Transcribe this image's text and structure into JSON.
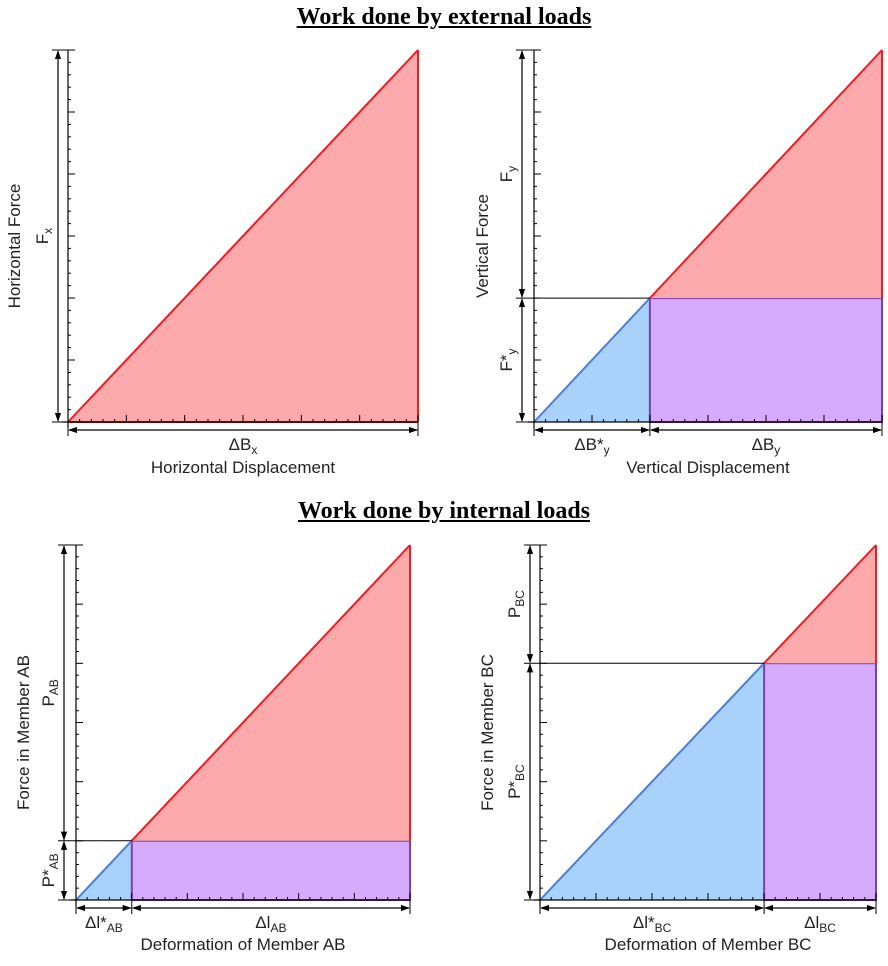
{
  "headings": {
    "external": "Work done by external loads",
    "internal": "Work done by internal loads"
  },
  "colors": {
    "red_fill": "#fba9ab",
    "red_line": "#ee1c25",
    "blue_fill": "#a8d2fb",
    "blue_line": "#4a7fd1",
    "purple_fill": "#d6aafc",
    "purple_line": "#7a3fb0",
    "axis": "#000000"
  },
  "panels": [
    {
      "id": "panel-horizontal",
      "y_axis_label": "Horizontal Force",
      "x_axis_label": "Horizontal Displacement",
      "y_dim_labels": [
        {
          "text": "F",
          "sub": "x"
        }
      ],
      "x_dim_labels": [
        {
          "text": "ΔB",
          "sub": "x"
        }
      ],
      "split_fraction": 0
    },
    {
      "id": "panel-vertical",
      "y_axis_label": "Vertical Force",
      "x_axis_label": "Vertical Displacement",
      "y_dim_labels": [
        {
          "text": "F*",
          "sub": "y"
        },
        {
          "text": "F",
          "sub": "y"
        }
      ],
      "x_dim_labels": [
        {
          "text": "ΔB*",
          "sub": "y"
        },
        {
          "text": "ΔB",
          "sub": "y"
        }
      ],
      "split_fraction": 0.333
    },
    {
      "id": "panel-member-ab",
      "y_axis_label": "Force in Member AB",
      "x_axis_label": "Deformation of Member AB",
      "y_dim_labels": [
        {
          "text": "P*",
          "sub": "AB"
        },
        {
          "text": "P",
          "sub": "AB"
        }
      ],
      "x_dim_labels": [
        {
          "text": "Δl*",
          "sub": "AB"
        },
        {
          "text": "Δl",
          "sub": "AB"
        }
      ],
      "split_fraction": 0.167
    },
    {
      "id": "panel-member-bc",
      "y_axis_label": "Force in Member BC",
      "x_axis_label": "Deformation of Member BC",
      "y_dim_labels": [
        {
          "text": "P*",
          "sub": "BC"
        },
        {
          "text": "P",
          "sub": "BC"
        }
      ],
      "x_dim_labels": [
        {
          "text": "Δl*",
          "sub": "BC"
        },
        {
          "text": "Δl",
          "sub": "BC"
        }
      ],
      "split_fraction": 0.667
    }
  ]
}
